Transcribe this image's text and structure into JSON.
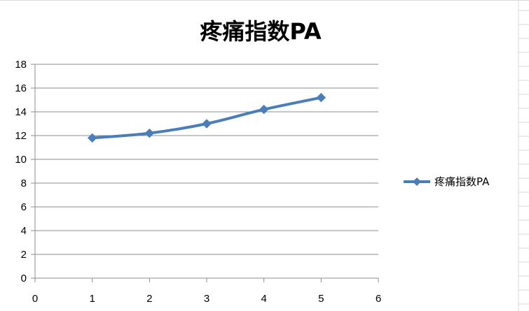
{
  "chart_data": {
    "type": "scatter",
    "title": "疼痛指数PA",
    "xlabel": "",
    "ylabel": "",
    "xlim": [
      0,
      6
    ],
    "ylim": [
      0,
      18
    ],
    "x_ticks": [
      0,
      1,
      2,
      3,
      4,
      5,
      6
    ],
    "y_ticks": [
      0,
      2,
      4,
      6,
      8,
      10,
      12,
      14,
      16,
      18
    ],
    "grid": "horizontal",
    "legend_position": "right",
    "series": [
      {
        "name": "疼痛指数PA",
        "color": "#4a7ebb",
        "marker": "diamond",
        "line": "smooth",
        "x": [
          1,
          2,
          3,
          4,
          5
        ],
        "y": [
          11.8,
          12.2,
          13.0,
          14.2,
          15.2
        ]
      }
    ]
  }
}
